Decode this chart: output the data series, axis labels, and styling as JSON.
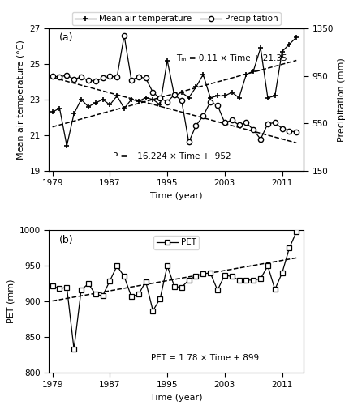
{
  "years": [
    1979,
    1980,
    1981,
    1982,
    1983,
    1984,
    1985,
    1986,
    1987,
    1988,
    1989,
    1990,
    1991,
    1992,
    1993,
    1994,
    1995,
    1996,
    1997,
    1998,
    1999,
    2000,
    2001,
    2002,
    2003,
    2004,
    2005,
    2006,
    2007,
    2008,
    2009,
    2010,
    2011,
    2012,
    2013
  ],
  "temp": [
    22.3,
    22.5,
    20.4,
    22.2,
    23.0,
    22.6,
    22.8,
    23.0,
    22.7,
    23.2,
    22.5,
    23.0,
    22.9,
    23.1,
    23.0,
    22.7,
    25.2,
    23.2,
    23.4,
    23.1,
    23.7,
    24.4,
    23.1,
    23.2,
    23.2,
    23.4,
    23.1,
    24.4,
    24.6,
    25.9,
    23.1,
    23.2,
    25.7,
    26.1,
    26.5
  ],
  "precip": [
    945,
    940,
    955,
    920,
    940,
    910,
    905,
    930,
    945,
    940,
    1290,
    915,
    940,
    930,
    810,
    760,
    730,
    790,
    740,
    390,
    530,
    610,
    730,
    700,
    555,
    575,
    535,
    555,
    495,
    415,
    545,
    555,
    505,
    485,
    475
  ],
  "pet": [
    922,
    918,
    920,
    833,
    916,
    925,
    910,
    908,
    929,
    950,
    935,
    907,
    910,
    928,
    887,
    904,
    950,
    921,
    920,
    930,
    936,
    939,
    940,
    916,
    937,
    935,
    930,
    930,
    930,
    932,
    950,
    917,
    940,
    975,
    998
  ],
  "temp_trend_slope": 0.11,
  "temp_trend_intercept": 21.35,
  "precip_trend_slope": -16.224,
  "precip_trend_intercept": 952,
  "pet_trend_slope": 1.78,
  "pet_trend_intercept": 899,
  "temp_ylim": [
    19,
    27
  ],
  "temp_yticks": [
    19,
    21,
    23,
    25,
    27
  ],
  "precip_ylim": [
    150,
    1350
  ],
  "precip_yticks": [
    150,
    550,
    950,
    1350
  ],
  "pet_ylim": [
    800,
    1000
  ],
  "pet_yticks": [
    800,
    850,
    900,
    950,
    1000
  ],
  "xlim": [
    1978.5,
    2014
  ],
  "xticks": [
    1979,
    1987,
    1995,
    2003,
    2011
  ],
  "xlabel": "Time (year)",
  "temp_ylabel": "Mean air temperature (°C)",
  "precip_ylabel": "Precipitation (mm)",
  "pet_ylabel": "PET (mm)",
  "legend_temp": "Mean air temperature",
  "legend_precip": "Precipitation",
  "legend_pet": "PET",
  "label_a": "(a)",
  "label_b": "(b)",
  "eq_temp": "Tₘ = 0.11 × Time + 21.35",
  "eq_precip": "P = −16.224 × Time +  952",
  "eq_pet": "PET = 1.78 × Time + 899"
}
